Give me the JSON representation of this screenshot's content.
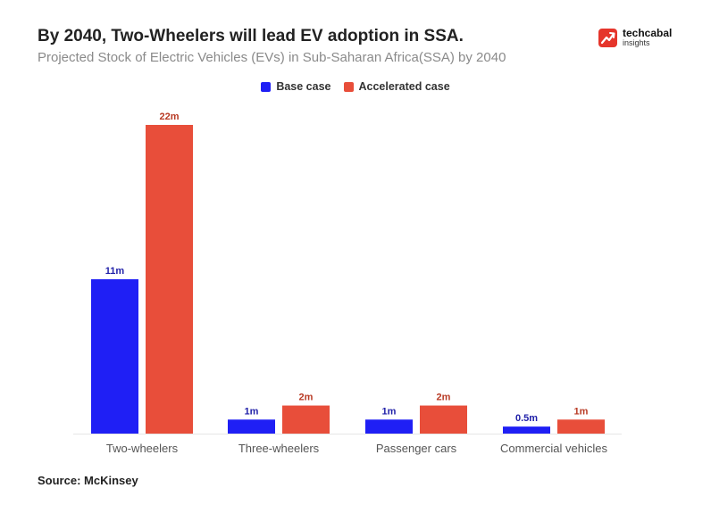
{
  "header": {
    "title": "By 2040, Two-Wheelers will lead EV adoption in SSA.",
    "subtitle": "Projected Stock of Electric Vehicles (EVs) in Sub-Saharan Africa(SSA) by 2040"
  },
  "logo": {
    "name": "techcabal",
    "sub": "insights",
    "icon": "trend-arrow-icon"
  },
  "footer": {
    "source": "Source: McKinsey"
  },
  "colors": {
    "base": "#1f1ff5",
    "accelerated": "#e84e3a",
    "label_base": "#1f1fa8",
    "label_accel": "#b83a24",
    "brand": "#e5352b"
  },
  "chart_data": {
    "type": "bar",
    "title": "By 2040, Two-Wheelers will lead EV adoption in SSA.",
    "xlabel": "",
    "ylabel": "",
    "ylim": [
      0,
      22
    ],
    "grid": false,
    "legend_position": "top-center",
    "categories": [
      "Two-wheelers",
      "Three-wheelers",
      "Passenger cars",
      "Commercial vehicles"
    ],
    "series": [
      {
        "name": "Base case",
        "values": [
          11,
          1,
          1,
          0.5
        ],
        "labels": [
          "11m",
          "1m",
          "1m",
          "0.5m"
        ]
      },
      {
        "name": "Accelerated case",
        "values": [
          22,
          2,
          2,
          1
        ],
        "labels": [
          "22m",
          "2m",
          "2m",
          "1m"
        ]
      }
    ]
  }
}
